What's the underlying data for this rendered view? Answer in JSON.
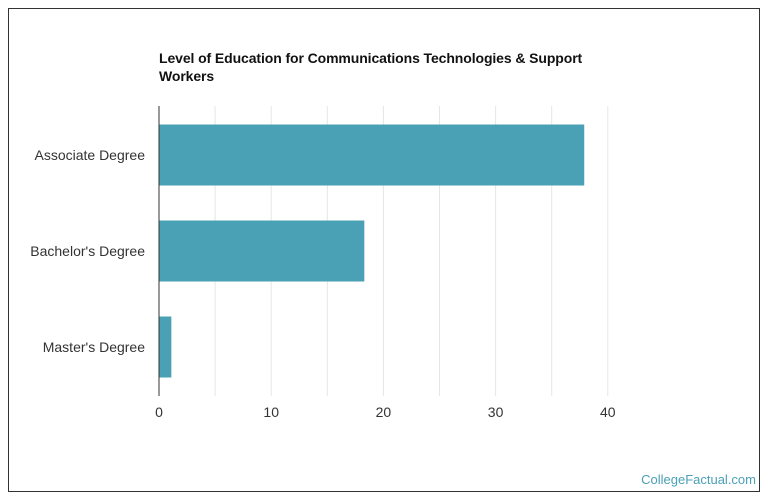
{
  "chart_data": {
    "type": "bar",
    "orientation": "horizontal",
    "title": "Level of Education for Communications Technologies & Support Workers",
    "categories": [
      "Associate Degree",
      "Bachelor's Degree",
      "Master's Degree"
    ],
    "values": [
      37.9,
      18.3,
      1.1
    ],
    "xlim": [
      0,
      40
    ],
    "xticks": [
      "0",
      "10",
      "20",
      "30",
      "40"
    ],
    "grid": true,
    "colors": {
      "bar": "#4aa0b5",
      "grid": "#e6e6e6",
      "axis": "#333333"
    }
  },
  "footer": {
    "brand": "CollegeFactual.com"
  }
}
